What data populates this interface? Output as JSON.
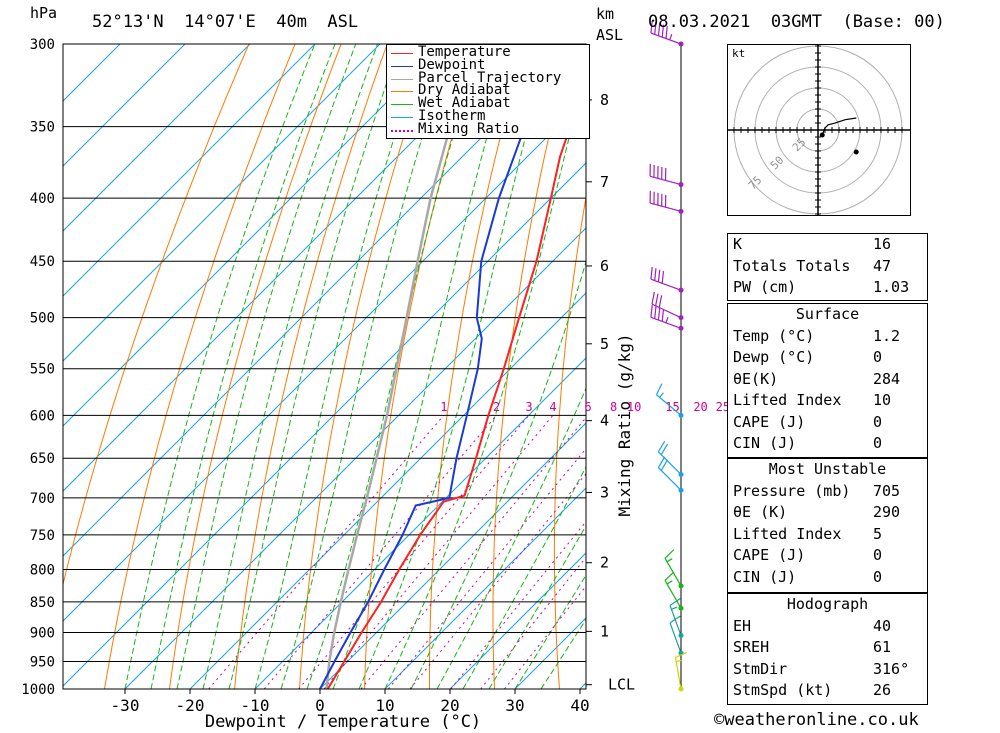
{
  "header": {
    "pressure_unit": "hPa",
    "location": "52°13'N  14°07'E  40m  ASL",
    "height_unit_top": "km",
    "height_unit_bottom": "ASL",
    "datetime": "08.03.2021  03GMT  (Base: 00)"
  },
  "chart_data": {
    "type": "skew-t",
    "xlabel": "Dewpoint / Temperature (°C)",
    "ylabel": "hPa",
    "right_axis_label": "Mixing Ratio (g/kg)",
    "x_ticks": [
      -30,
      -20,
      -10,
      0,
      10,
      20,
      30,
      40
    ],
    "xlim": [
      -40,
      40
    ],
    "pressure_levels": [
      300,
      350,
      400,
      450,
      500,
      550,
      600,
      650,
      700,
      750,
      800,
      850,
      900,
      950,
      1000
    ],
    "height_ticks_km": [
      {
        "km": "8",
        "p": 333
      },
      {
        "km": "7",
        "p": 388
      },
      {
        "km": "6",
        "p": 454
      },
      {
        "km": "5",
        "p": 525
      },
      {
        "km": "4",
        "p": 606
      },
      {
        "km": "3",
        "p": 693
      },
      {
        "km": "2",
        "p": 790
      },
      {
        "km": "1",
        "p": 898
      },
      {
        "km": "LCL",
        "p": 992
      }
    ],
    "mixing_ratio_labels": [
      "1",
      "2",
      "3",
      "4",
      "6",
      "8",
      "10",
      "15",
      "20",
      "25"
    ],
    "mixing_ratio_values": [
      1,
      2,
      3,
      4,
      6,
      8,
      10,
      15,
      20,
      25
    ],
    "legend": [
      "Temperature",
      "Dewpoint",
      "Parcel Trajectory",
      "Dry Adiabat",
      "Wet Adiabat",
      "Isotherm",
      "Mixing Ratio"
    ],
    "colors": {
      "temperature": "#ff2020",
      "dewpoint": "#1a3ad8",
      "parcel": "#a8a8a8",
      "dry_adiabat": "#ff7a00",
      "wet_adiabat": "#17b517",
      "isotherm": "#1aa0e8",
      "mixing_ratio": "#d0009a"
    },
    "temperature": [
      {
        "p": 1000,
        "t": 1.2
      },
      {
        "p": 950,
        "t": -0.5
      },
      {
        "p": 900,
        "t": -2.3
      },
      {
        "p": 850,
        "t": -4.0
      },
      {
        "p": 800,
        "t": -6.2
      },
      {
        "p": 750,
        "t": -8.3
      },
      {
        "p": 705,
        "t": -9.8
      },
      {
        "p": 697,
        "t": -7.5
      },
      {
        "p": 650,
        "t": -11.5
      },
      {
        "p": 600,
        "t": -16.2
      },
      {
        "p": 550,
        "t": -21.0
      },
      {
        "p": 500,
        "t": -26.5
      },
      {
        "p": 450,
        "t": -32.5
      },
      {
        "p": 400,
        "t": -40.0
      },
      {
        "p": 370,
        "t": -45.0
      },
      {
        "p": 350,
        "t": -48.0
      },
      {
        "p": 330,
        "t": -51.0
      },
      {
        "p": 300,
        "t": -55.0
      }
    ],
    "dewpoint": [
      {
        "p": 1000,
        "t": 0.0
      },
      {
        "p": 950,
        "t": -2.0
      },
      {
        "p": 900,
        "t": -4.0
      },
      {
        "p": 850,
        "t": -6.0
      },
      {
        "p": 800,
        "t": -8.5
      },
      {
        "p": 750,
        "t": -11.0
      },
      {
        "p": 710,
        "t": -13.5
      },
      {
        "p": 700,
        "t": -9.5
      },
      {
        "p": 650,
        "t": -14.5
      },
      {
        "p": 600,
        "t": -19.5
      },
      {
        "p": 550,
        "t": -25.0
      },
      {
        "p": 520,
        "t": -29.0
      },
      {
        "p": 500,
        "t": -33.0
      },
      {
        "p": 450,
        "t": -41.0
      },
      {
        "p": 400,
        "t": -48.0
      },
      {
        "p": 350,
        "t": -55.0
      },
      {
        "p": 320,
        "t": -60.0
      },
      {
        "p": 310,
        "t": -66.0
      },
      {
        "p": 300,
        "t": -66.0
      }
    ],
    "parcel": [
      {
        "p": 1000,
        "t": 1.0
      },
      {
        "p": 950,
        "t": -2.8
      },
      {
        "p": 900,
        "t": -6.5
      },
      {
        "p": 850,
        "t": -10.2
      },
      {
        "p": 800,
        "t": -14.0
      },
      {
        "p": 750,
        "t": -18.0
      },
      {
        "p": 700,
        "t": -22.2
      },
      {
        "p": 650,
        "t": -26.8
      },
      {
        "p": 600,
        "t": -31.8
      },
      {
        "p": 550,
        "t": -37.5
      },
      {
        "p": 500,
        "t": -43.8
      },
      {
        "p": 450,
        "t": -50.8
      },
      {
        "p": 400,
        "t": -58.5
      },
      {
        "p": 350,
        "t": -66.5
      },
      {
        "p": 300,
        "t": -75.0
      }
    ],
    "wind_barbs": [
      {
        "p": 300,
        "dir": 290,
        "kt": 55
      },
      {
        "p": 390,
        "dir": 285,
        "kt": 50
      },
      {
        "p": 410,
        "dir": 285,
        "kt": 50
      },
      {
        "p": 475,
        "dir": 290,
        "kt": 40
      },
      {
        "p": 500,
        "dir": 295,
        "kt": 30
      },
      {
        "p": 510,
        "dir": 290,
        "kt": 45
      },
      {
        "p": 600,
        "dir": 310,
        "kt": 15
      },
      {
        "p": 670,
        "dir": 315,
        "kt": 20
      },
      {
        "p": 690,
        "dir": 315,
        "kt": 20
      },
      {
        "p": 825,
        "dir": 330,
        "kt": 15
      },
      {
        "p": 860,
        "dir": 330,
        "kt": 15
      },
      {
        "p": 905,
        "dir": 340,
        "kt": 15
      },
      {
        "p": 935,
        "dir": 340,
        "kt": 10
      },
      {
        "p": 1000,
        "dir": 350,
        "kt": 15
      }
    ]
  },
  "hodograph": {
    "unit": "kt",
    "ring_labels": [
      "25",
      "50",
      "75"
    ],
    "trace": [
      [
        5,
        0
      ],
      [
        8,
        -8
      ],
      [
        12,
        -12
      ],
      [
        20,
        -14
      ],
      [
        32,
        -18
      ],
      [
        45,
        -20
      ]
    ]
  },
  "indices": {
    "general": [
      {
        "label": "K",
        "value": "16"
      },
      {
        "label": "Totals Totals",
        "value": "47"
      },
      {
        "label": "PW (cm)",
        "value": "1.03"
      }
    ],
    "surface": {
      "title": "Surface",
      "rows": [
        {
          "label": "Temp (°C)",
          "value": "1.2"
        },
        {
          "label": "Dewp (°C)",
          "value": "0"
        },
        {
          "label": "θE(K)",
          "value": "284"
        },
        {
          "label": "Lifted Index",
          "value": "10"
        },
        {
          "label": "CAPE (J)",
          "value": "0"
        },
        {
          "label": "CIN (J)",
          "value": "0"
        }
      ]
    },
    "most_unstable": {
      "title": "Most Unstable",
      "rows": [
        {
          "label": "Pressure (mb)",
          "value": "705"
        },
        {
          "label": "θE (K)",
          "value": "290"
        },
        {
          "label": "Lifted Index",
          "value": "5"
        },
        {
          "label": "CAPE (J)",
          "value": "0"
        },
        {
          "label": "CIN (J)",
          "value": "0"
        }
      ]
    },
    "hodograph": {
      "title": "Hodograph",
      "rows": [
        {
          "label": "EH",
          "value": "40"
        },
        {
          "label": "SREH",
          "value": "61"
        },
        {
          "label": "StmDir",
          "value": "316°"
        },
        {
          "label": "StmSpd (kt)",
          "value": "26"
        }
      ]
    }
  },
  "footer": {
    "copyright": "©weatheronline.co.uk"
  }
}
